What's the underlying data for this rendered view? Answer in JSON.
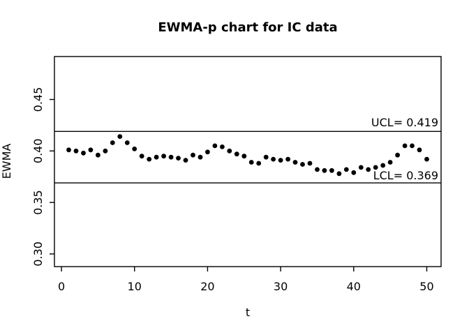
{
  "chart_data": {
    "type": "scatter",
    "title": "EWMA-p chart for IC data",
    "xlabel": "t",
    "ylabel": "EWMA",
    "point_symbol": "filled-circle",
    "point_color": "#000000",
    "line_color": "#000000",
    "background_color": "#ffffff",
    "grid": "off",
    "x_axis": {
      "ticks": [
        "0",
        "10",
        "20",
        "30",
        "40",
        "50"
      ],
      "tick_values": [
        0,
        10,
        20,
        30,
        40,
        50
      ],
      "range": [
        -0.96,
        51.96
      ]
    },
    "y_axis": {
      "ticks": [
        "0.30",
        "0.35",
        "0.40",
        "0.45"
      ],
      "tick_values": [
        0.3,
        0.35,
        0.4,
        0.45
      ],
      "range": [
        0.2877,
        0.4917
      ]
    },
    "ucl": {
      "label": "UCL= 0.419",
      "value": 0.419
    },
    "lcl": {
      "label": "LCL= 0.369",
      "value": 0.369
    },
    "x": [
      1,
      2,
      3,
      4,
      5,
      6,
      7,
      8,
      9,
      10,
      11,
      12,
      13,
      14,
      15,
      16,
      17,
      18,
      19,
      20,
      21,
      22,
      23,
      24,
      25,
      26,
      27,
      28,
      29,
      30,
      31,
      32,
      33,
      34,
      35,
      36,
      37,
      38,
      39,
      40,
      41,
      42,
      43,
      44,
      45,
      46,
      47,
      48,
      49,
      50
    ],
    "y": [
      0.401,
      0.4,
      0.398,
      0.401,
      0.396,
      0.4,
      0.408,
      0.414,
      0.408,
      0.402,
      0.395,
      0.392,
      0.394,
      0.395,
      0.394,
      0.393,
      0.391,
      0.396,
      0.394,
      0.399,
      0.405,
      0.404,
      0.4,
      0.397,
      0.395,
      0.389,
      0.388,
      0.394,
      0.392,
      0.391,
      0.392,
      0.389,
      0.387,
      0.388,
      0.382,
      0.381,
      0.381,
      0.378,
      0.382,
      0.379,
      0.384,
      0.382,
      0.384,
      0.386,
      0.389,
      0.396,
      0.405,
      0.405,
      0.401,
      0.392
    ]
  }
}
